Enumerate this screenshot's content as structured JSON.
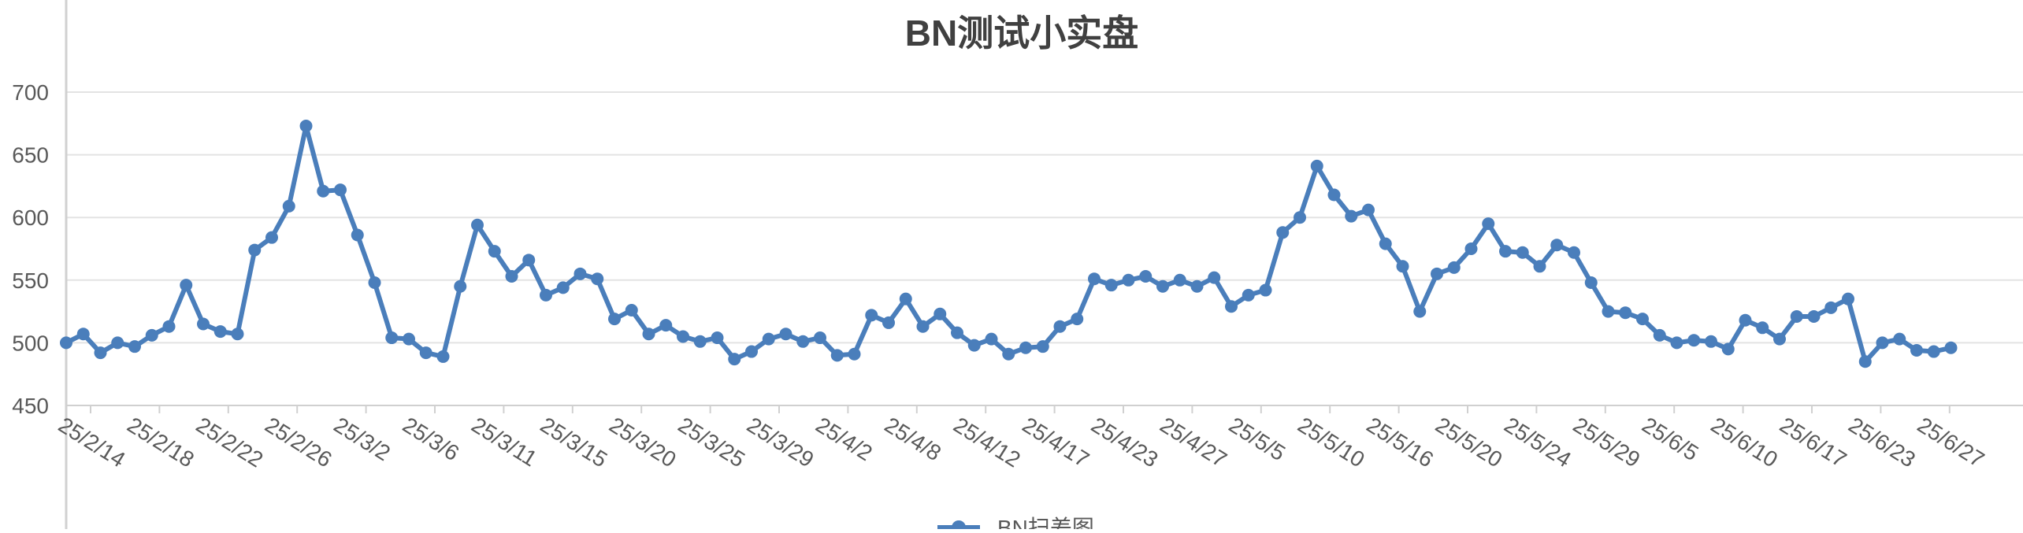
{
  "chart_data": {
    "type": "line",
    "title": "BN测试小实盘",
    "xlabel": "",
    "ylabel": "",
    "ylim": [
      450,
      700
    ],
    "yticks": [
      450,
      500,
      550,
      600,
      650,
      700
    ],
    "grid": true,
    "legend_position": "bottom",
    "line_color": "#4a7ebb",
    "x_tick_labels": [
      "25/2/14",
      "25/2/18",
      "25/2/22",
      "25/2/26",
      "25/3/2",
      "25/3/6",
      "25/3/11",
      "25/3/15",
      "25/3/20",
      "25/3/25",
      "25/3/29",
      "25/4/2",
      "25/4/8",
      "25/4/12",
      "25/4/17",
      "25/4/23",
      "25/4/27",
      "25/5/5",
      "25/5/10",
      "25/5/16",
      "25/5/20",
      "25/5/24",
      "25/5/29",
      "25/6/5",
      "25/6/10",
      "25/6/17",
      "25/6/23",
      "25/6/27"
    ],
    "series": [
      {
        "name": "BN扫差图",
        "values": [
          500,
          507,
          492,
          500,
          497,
          506,
          513,
          546,
          515,
          509,
          507,
          574,
          584,
          609,
          673,
          621,
          622,
          586,
          548,
          504,
          503,
          492,
          489,
          545,
          594,
          573,
          553,
          566,
          538,
          544,
          555,
          551,
          519,
          526,
          507,
          514,
          505,
          501,
          504,
          487,
          493,
          503,
          507,
          501,
          504,
          490,
          491,
          522,
          516,
          535,
          513,
          523,
          508,
          498,
          503,
          491,
          496,
          497,
          513,
          519,
          551,
          546,
          550,
          553,
          545,
          550,
          545,
          552,
          529,
          538,
          542,
          588,
          600,
          641,
          618,
          601,
          606,
          579,
          561,
          525,
          555,
          560,
          575,
          595,
          573,
          572,
          561,
          578,
          572,
          548,
          525,
          524,
          519,
          506,
          500,
          502,
          501,
          495,
          518,
          512,
          503,
          521,
          521,
          528,
          535,
          485,
          500,
          503,
          494,
          493,
          496
        ]
      }
    ]
  }
}
